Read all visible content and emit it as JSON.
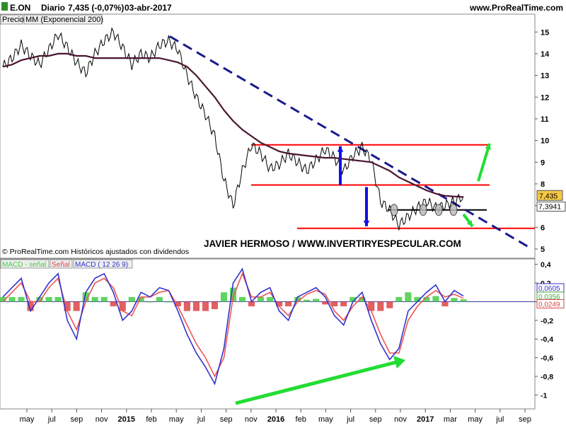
{
  "header": {
    "symbol": "E.ON",
    "period": "Diario",
    "quote": "7,435 (-0,07%)",
    "date": "03-abr-2017",
    "site": "www.ProRealTime.com"
  },
  "price_panel": {
    "legend_price": "Precio",
    "legend_ma": "MM (Exponencial 200)",
    "watermark": "JAVIER HERMOSO / WWW.INVERTIRYESPECULAR.COM",
    "footer": "© ProRealTime.com Históricos ajustados con dividendos",
    "last_price_label": "7,435",
    "ma_value_label": "7,3941"
  },
  "macd_panel": {
    "legend_diff": "MACD - señal",
    "legend_signal": "Señal",
    "legend_macd": "MACD ( 12 26 9)",
    "macd_value_label": "0,0605",
    "signal_value_label": "0,0356",
    "diff_value_label": "0,0249"
  },
  "colors": {
    "price": "#000000",
    "ma": "#4a1530",
    "trendline": "#1a1a8c",
    "support_resistance": "#ff0000",
    "arrow_blue": "#1010e0",
    "arrow_green": "#22dd33",
    "macd_line": "#3333cc",
    "signal_line": "#ee5555",
    "hist_pos": "#44cc44",
    "hist_neg": "#dd4444"
  },
  "chart_data": [
    {
      "type": "line",
      "series": [
        {
          "name": "Precio",
          "values": [
            13.4,
            13.8,
            14.4,
            13.9,
            13.5,
            14.2,
            14.9,
            14.3,
            13.6,
            13.1,
            14.0,
            14.6,
            15.0,
            14.3,
            13.5,
            14.0,
            13.8,
            14.4,
            14.6,
            14.2,
            13.0,
            12.0,
            11.2,
            10.2,
            8.2,
            7.0,
            8.6,
            9.8,
            9.4,
            8.7,
            8.9,
            9.4,
            9.0,
            8.6,
            9.1,
            9.6,
            9.2,
            8.6,
            9.3,
            9.7,
            9.1,
            7.2,
            6.8,
            6.1,
            6.5,
            6.9,
            7.2,
            6.9,
            7.0,
            7.2,
            7.435
          ]
        },
        {
          "name": "MM (Exponencial 200)",
          "values": [
            13.4,
            13.5,
            13.7,
            13.8,
            13.9,
            13.9,
            14.0,
            14.0,
            13.9,
            13.9,
            13.8,
            13.8,
            13.8,
            13.8,
            13.8,
            13.8,
            13.8,
            13.8,
            13.7,
            13.6,
            13.4,
            13.0,
            12.5,
            12.0,
            11.4,
            10.9,
            10.5,
            10.2,
            9.9,
            9.7,
            9.5,
            9.4,
            9.35,
            9.3,
            9.25,
            9.2,
            9.2,
            9.15,
            9.1,
            9.05,
            9.0,
            8.8,
            8.6,
            8.3,
            8.1,
            7.9,
            7.7,
            7.55,
            7.45,
            7.42,
            7.3941
          ]
        }
      ],
      "x_ticks": [
        "may",
        "jul",
        "sep",
        "nov",
        "2015",
        "feb",
        "may",
        "jul",
        "sep",
        "nov",
        "2016",
        "feb",
        "may",
        "jul",
        "sep",
        "nov",
        "2017",
        "mar",
        "may",
        "jul",
        "sep"
      ],
      "y_ticks": [
        "15",
        "14",
        "13",
        "12",
        "11",
        "10",
        "9",
        "8",
        "7",
        "6",
        "5"
      ],
      "ylim": [
        4.9,
        15.4
      ],
      "levels": {
        "resistance_upper": 9.8,
        "resistance_mid": 7.95,
        "neckline": 6.8,
        "support": 5.95
      },
      "trendline": {
        "from": 14.8,
        "to": 5.0
      }
    },
    {
      "type": "line",
      "series": [
        {
          "name": "MACD ( 12 26 9)",
          "values": [
            0.05,
            0.15,
            0.25,
            -0.1,
            0.05,
            0.2,
            0.3,
            -0.2,
            -0.4,
            0.1,
            0.25,
            0.3,
            0.1,
            -0.2,
            -0.1,
            0.1,
            0.05,
            0.15,
            0.12,
            -0.1,
            -0.35,
            -0.55,
            -0.7,
            -0.88,
            -0.5,
            0.2,
            0.35,
            0.0,
            0.1,
            0.15,
            -0.1,
            -0.2,
            0.05,
            0.1,
            0.15,
            0.05,
            -0.15,
            -0.25,
            0.0,
            0.1,
            -0.2,
            -0.45,
            -0.62,
            -0.5,
            -0.1,
            0.0,
            0.1,
            0.18,
            0.0,
            0.12,
            0.0605
          ]
        },
        {
          "name": "Señal",
          "values": [
            0.0,
            0.1,
            0.2,
            0.0,
            0.0,
            0.15,
            0.25,
            -0.1,
            -0.3,
            0.0,
            0.2,
            0.25,
            0.15,
            -0.1,
            -0.15,
            0.05,
            0.05,
            0.1,
            0.12,
            -0.05,
            -0.25,
            -0.45,
            -0.6,
            -0.8,
            -0.6,
            0.05,
            0.3,
            0.05,
            0.05,
            0.1,
            -0.05,
            -0.15,
            0.0,
            0.08,
            0.12,
            0.08,
            -0.1,
            -0.2,
            -0.05,
            0.05,
            -0.1,
            -0.35,
            -0.55,
            -0.55,
            -0.2,
            -0.05,
            0.05,
            0.12,
            0.05,
            0.08,
            0.0356
          ]
        }
      ],
      "histogram_name": "MACD - señal",
      "histogram": [
        0.05,
        0.05,
        0.05,
        -0.1,
        0.05,
        0.05,
        0.05,
        -0.1,
        -0.1,
        0.1,
        0.05,
        0.05,
        -0.05,
        -0.1,
        0.05,
        0.05,
        0.0,
        0.05,
        0.0,
        -0.05,
        -0.1,
        -0.1,
        -0.1,
        -0.08,
        0.1,
        0.15,
        0.05,
        -0.05,
        0.05,
        0.05,
        -0.05,
        -0.05,
        0.05,
        0.02,
        0.03,
        -0.03,
        -0.05,
        -0.05,
        0.05,
        0.05,
        -0.1,
        -0.1,
        -0.07,
        0.05,
        0.1,
        0.05,
        0.05,
        0.06,
        -0.05,
        0.04,
        0.0249
      ],
      "y_ticks": [
        "0,4",
        "0,2",
        "0",
        "-0,2",
        "-0,4",
        "-0,6",
        "-0,8",
        "-1"
      ],
      "ylim": [
        -1.05,
        0.42
      ]
    }
  ]
}
